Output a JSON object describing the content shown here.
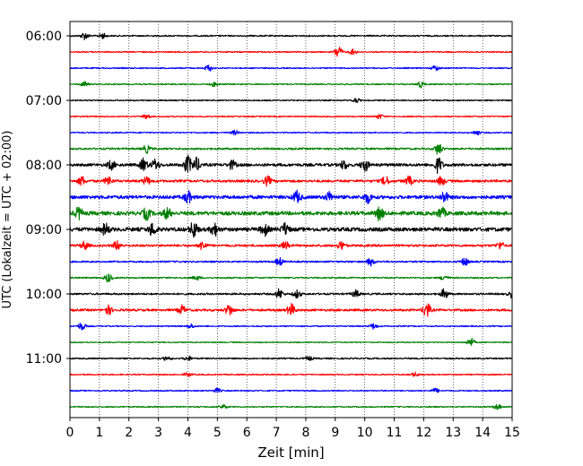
{
  "chart_data": {
    "type": "line",
    "title": "",
    "xlabel": "Zeit  [min]",
    "ylabel": "UTC (Lokalzeit = UTC + 02:00)",
    "xlim": [
      0,
      15
    ],
    "x_ticks": [
      "0",
      "1",
      "2",
      "3",
      "4",
      "5",
      "6",
      "7",
      "8",
      "9",
      "10",
      "11",
      "12",
      "13",
      "14",
      "15"
    ],
    "y_ticks": [
      "06:00",
      "07:00",
      "08:00",
      "09:00",
      "10:00",
      "11:00"
    ],
    "grid": "vertical dotted at each minute",
    "trace_colors": [
      "#000000",
      "#ff0000",
      "#0000ff",
      "#008000"
    ],
    "series": [
      {
        "start": "06:00",
        "color": "#000000",
        "amplitude": 0.35,
        "events": [
          [
            0.5,
            0.8
          ],
          [
            1.1,
            0.6
          ]
        ]
      },
      {
        "start": "06:15",
        "color": "#ff0000",
        "amplitude": 0.3,
        "events": [
          [
            9.1,
            1.4
          ],
          [
            9.6,
            0.6
          ]
        ]
      },
      {
        "start": "06:30",
        "color": "#0000ff",
        "amplitude": 0.3,
        "events": [
          [
            4.7,
            0.7
          ],
          [
            12.4,
            0.6
          ]
        ]
      },
      {
        "start": "06:45",
        "color": "#008000",
        "amplitude": 0.3,
        "events": [
          [
            0.5,
            0.6
          ],
          [
            4.9,
            0.5
          ],
          [
            11.9,
            0.7
          ]
        ]
      },
      {
        "start": "07:00",
        "color": "#000000",
        "amplitude": 0.3,
        "events": [
          [
            9.7,
            0.5
          ]
        ]
      },
      {
        "start": "07:15",
        "color": "#ff0000",
        "amplitude": 0.3,
        "events": [
          [
            2.6,
            0.5
          ],
          [
            10.5,
            0.5
          ]
        ]
      },
      {
        "start": "07:30",
        "color": "#0000ff",
        "amplitude": 0.3,
        "events": [
          [
            5.6,
            0.5
          ],
          [
            13.8,
            0.5
          ]
        ]
      },
      {
        "start": "07:45",
        "color": "#008000",
        "amplitude": 0.45,
        "events": [
          [
            2.6,
            0.9
          ],
          [
            12.5,
            1.3
          ]
        ]
      },
      {
        "start": "08:00",
        "color": "#000000",
        "amplitude": 0.7,
        "events": [
          [
            1.4,
            1.0
          ],
          [
            2.5,
            1.4
          ],
          [
            2.9,
            1.2
          ],
          [
            4.0,
            2.0
          ],
          [
            4.3,
            1.5
          ],
          [
            5.5,
            1.0
          ],
          [
            9.3,
            1.0
          ],
          [
            10.0,
            1.4
          ],
          [
            12.5,
            1.8
          ]
        ]
      },
      {
        "start": "08:15",
        "color": "#ff0000",
        "amplitude": 0.6,
        "events": [
          [
            0.4,
            1.0
          ],
          [
            1.3,
            1.0
          ],
          [
            2.6,
            0.9
          ],
          [
            6.7,
            1.0
          ],
          [
            10.7,
            1.0
          ],
          [
            11.5,
            1.0
          ],
          [
            12.6,
            1.0
          ]
        ]
      },
      {
        "start": "08:30",
        "color": "#0000ff",
        "amplitude": 0.85,
        "events": [
          [
            4.0,
            1.3
          ],
          [
            7.7,
            1.3
          ],
          [
            8.8,
            1.1
          ],
          [
            10.1,
            1.2
          ],
          [
            12.7,
            1.2
          ]
        ]
      },
      {
        "start": "08:45",
        "color": "#008000",
        "amplitude": 0.95,
        "events": [
          [
            0.3,
            1.3
          ],
          [
            2.6,
            1.3
          ],
          [
            3.3,
            1.2
          ],
          [
            10.5,
            1.5
          ],
          [
            12.6,
            1.3
          ]
        ]
      },
      {
        "start": "09:00",
        "color": "#000000",
        "amplitude": 0.95,
        "events": [
          [
            1.2,
            1.3
          ],
          [
            2.8,
            1.4
          ],
          [
            4.2,
            1.8
          ],
          [
            4.9,
            1.4
          ],
          [
            6.6,
            1.3
          ],
          [
            7.3,
            1.3
          ]
        ]
      },
      {
        "start": "09:15",
        "color": "#ff0000",
        "amplitude": 0.55,
        "events": [
          [
            0.5,
            0.9
          ],
          [
            1.6,
            1.0
          ],
          [
            4.5,
            1.0
          ],
          [
            7.3,
            0.9
          ],
          [
            9.2,
            0.9
          ],
          [
            14.6,
            0.8
          ]
        ]
      },
      {
        "start": "09:30",
        "color": "#0000ff",
        "amplitude": 0.4,
        "events": [
          [
            7.1,
            0.9
          ],
          [
            10.2,
            0.9
          ],
          [
            13.4,
            0.9
          ]
        ]
      },
      {
        "start": "09:45",
        "color": "#008000",
        "amplitude": 0.35,
        "events": [
          [
            1.3,
            1.0
          ],
          [
            4.3,
            0.5
          ],
          [
            12.7,
            0.6
          ]
        ]
      },
      {
        "start": "10:00",
        "color": "#000000",
        "amplitude": 0.45,
        "events": [
          [
            7.1,
            1.1
          ],
          [
            7.7,
            0.9
          ],
          [
            9.7,
            0.8
          ],
          [
            12.7,
            1.1
          ],
          [
            15.0,
            0.8
          ]
        ]
      },
      {
        "start": "10:15",
        "color": "#ff0000",
        "amplitude": 0.55,
        "events": [
          [
            1.3,
            1.0
          ],
          [
            3.8,
            1.0
          ],
          [
            5.4,
            1.3
          ],
          [
            7.5,
            1.4
          ],
          [
            12.1,
            1.8
          ]
        ]
      },
      {
        "start": "10:30",
        "color": "#0000ff",
        "amplitude": 0.3,
        "events": [
          [
            0.4,
            0.9
          ],
          [
            4.1,
            0.5
          ],
          [
            10.3,
            0.6
          ]
        ]
      },
      {
        "start": "10:45",
        "color": "#008000",
        "amplitude": 0.25,
        "events": [
          [
            13.6,
            1.0
          ]
        ]
      },
      {
        "start": "11:00",
        "color": "#000000",
        "amplitude": 0.35,
        "events": [
          [
            3.3,
            0.5
          ],
          [
            4.0,
            0.5
          ],
          [
            8.1,
            0.5
          ]
        ]
      },
      {
        "start": "11:15",
        "color": "#ff0000",
        "amplitude": 0.3,
        "events": [
          [
            4.0,
            0.4
          ],
          [
            11.7,
            0.5
          ]
        ]
      },
      {
        "start": "11:30",
        "color": "#0000ff",
        "amplitude": 0.3,
        "events": [
          [
            5.0,
            0.5
          ],
          [
            12.4,
            0.5
          ]
        ]
      },
      {
        "start": "11:45",
        "color": "#008000",
        "amplitude": 0.3,
        "events": [
          [
            5.2,
            0.5
          ],
          [
            14.5,
            0.6
          ]
        ]
      }
    ]
  }
}
